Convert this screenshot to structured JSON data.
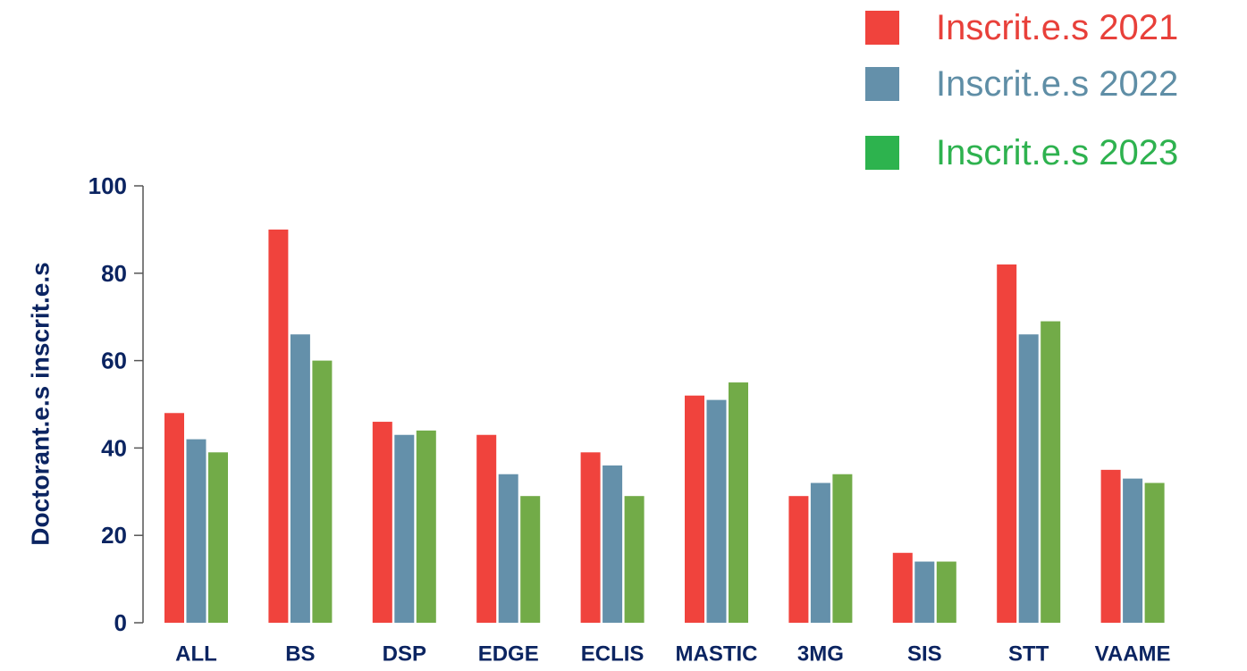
{
  "chart_data": {
    "type": "bar",
    "title": "",
    "xlabel": "",
    "ylabel": "Doctorant.e.s inscrit.e.s",
    "ylim": [
      0,
      100
    ],
    "yticks": [
      "0",
      "20",
      "40",
      "60",
      "80",
      "100"
    ],
    "grid": false,
    "legend_position": "top-right",
    "categories": [
      "ALL",
      "BS",
      "DSP",
      "EDGE",
      "ECLIS",
      "MASTIC",
      "3MG",
      "SIS",
      "STT",
      "VAAME"
    ],
    "series": [
      {
        "name": "Inscrit.e.s 2021",
        "color": "#f0433d",
        "legend_text_color": "#e8403a",
        "values": [
          48,
          90,
          46,
          43,
          39,
          52,
          29,
          16,
          82,
          35
        ]
      },
      {
        "name": "Inscrit.e.s 2022",
        "color": "#6490aa",
        "legend_text_color": "#5f8ea6",
        "values": [
          42,
          66,
          43,
          34,
          36,
          51,
          32,
          14,
          66,
          33
        ]
      },
      {
        "name": "Inscrit.e.s 2023",
        "color": "#72ab48",
        "legend_text_color": "#2eb24f",
        "legend_swatch_color": "#2db34e",
        "values": [
          39,
          60,
          44,
          29,
          29,
          55,
          34,
          14,
          69,
          32
        ]
      }
    ]
  }
}
